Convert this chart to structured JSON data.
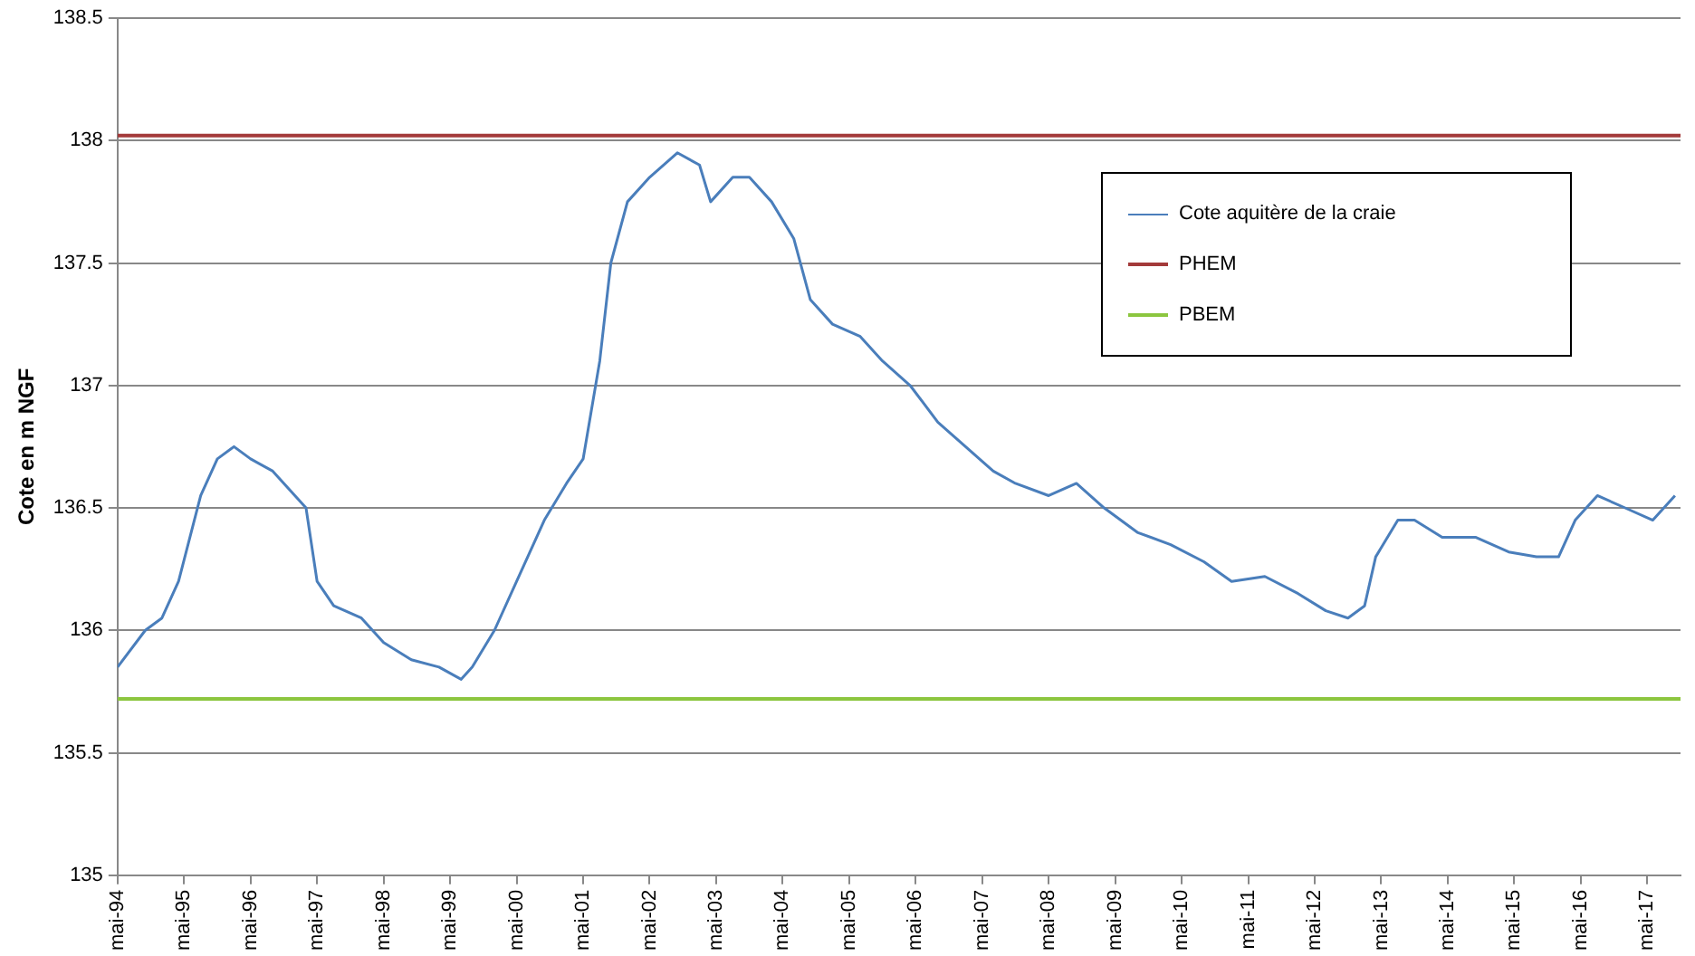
{
  "chart_data": {
    "type": "line",
    "ylabel": "Cote en m NGF",
    "x": [
      "1994-05",
      "1994-10",
      "1995-01",
      "1995-04",
      "1995-08",
      "1995-11",
      "1996-02",
      "1996-05",
      "1996-09",
      "1997-01",
      "1997-03",
      "1997-05",
      "1997-08",
      "1998-01",
      "1998-05",
      "1998-10",
      "1999-03",
      "1999-07",
      "1999-09",
      "2000-01",
      "2000-05",
      "2000-10",
      "2001-02",
      "2001-05",
      "2001-08",
      "2001-10",
      "2002-01",
      "2002-05",
      "2002-10",
      "2003-02",
      "2003-04",
      "2003-08",
      "2003-11",
      "2004-03",
      "2004-07",
      "2004-10",
      "2005-02",
      "2005-07",
      "2005-11",
      "2006-04",
      "2006-09",
      "2007-02",
      "2007-07",
      "2007-11",
      "2008-05",
      "2008-10",
      "2009-03",
      "2009-09",
      "2010-03",
      "2010-09",
      "2011-02",
      "2011-08",
      "2012-02",
      "2012-07",
      "2012-11",
      "2013-02",
      "2013-04",
      "2013-08",
      "2013-11",
      "2014-04",
      "2014-10",
      "2015-04",
      "2015-09",
      "2016-01",
      "2016-04",
      "2016-08",
      "2017-01",
      "2017-06",
      "2017-10"
    ],
    "series": [
      {
        "name": "Cote aquitère de la craie",
        "color": "#4a7ebb",
        "values": [
          135.85,
          136.0,
          136.05,
          136.2,
          136.55,
          136.7,
          136.75,
          136.7,
          136.65,
          136.55,
          136.5,
          136.2,
          136.1,
          136.05,
          135.95,
          135.88,
          135.85,
          135.8,
          135.85,
          136.0,
          136.2,
          136.45,
          136.6,
          136.7,
          137.1,
          137.5,
          137.75,
          137.85,
          137.95,
          137.9,
          137.75,
          137.85,
          137.85,
          137.75,
          137.6,
          137.35,
          137.25,
          137.2,
          137.1,
          137.0,
          136.85,
          136.75,
          136.65,
          136.6,
          136.55,
          136.6,
          136.5,
          136.4,
          136.35,
          136.28,
          136.2,
          136.22,
          136.15,
          136.08,
          136.05,
          136.1,
          136.3,
          136.45,
          136.45,
          136.38,
          136.38,
          136.32,
          136.3,
          136.3,
          136.45,
          136.55,
          136.5,
          136.45,
          136.55
        ]
      }
    ],
    "ref_lines": [
      {
        "axis": "y",
        "value": 138.02,
        "label": "PHEM",
        "color": "#a33a3a"
      },
      {
        "axis": "y",
        "value": 135.72,
        "label": "PBEM",
        "color": "#8cc63f"
      }
    ],
    "xlim": [
      "1994-05",
      "2017-11"
    ],
    "xticks": [
      {
        "value": "1994-05",
        "label": "mai-94"
      },
      {
        "value": "1995-05",
        "label": "mai-95"
      },
      {
        "value": "1996-05",
        "label": "mai-96"
      },
      {
        "value": "1997-05",
        "label": "mai-97"
      },
      {
        "value": "1998-05",
        "label": "mai-98"
      },
      {
        "value": "1999-05",
        "label": "mai-99"
      },
      {
        "value": "2000-05",
        "label": "mai-00"
      },
      {
        "value": "2001-05",
        "label": "mai-01"
      },
      {
        "value": "2002-05",
        "label": "mai-02"
      },
      {
        "value": "2003-05",
        "label": "mai-03"
      },
      {
        "value": "2004-05",
        "label": "mai-04"
      },
      {
        "value": "2005-05",
        "label": "mai-05"
      },
      {
        "value": "2006-05",
        "label": "mai-06"
      },
      {
        "value": "2007-05",
        "label": "mai-07"
      },
      {
        "value": "2008-05",
        "label": "mai-08"
      },
      {
        "value": "2009-05",
        "label": "mai-09"
      },
      {
        "value": "2010-05",
        "label": "mai-10"
      },
      {
        "value": "2011-05",
        "label": "mai-11"
      },
      {
        "value": "2012-05",
        "label": "mai-12"
      },
      {
        "value": "2013-05",
        "label": "mai-13"
      },
      {
        "value": "2014-05",
        "label": "mai-14"
      },
      {
        "value": "2015-05",
        "label": "mai-15"
      },
      {
        "value": "2016-05",
        "label": "mai-16"
      },
      {
        "value": "2017-05",
        "label": "mai-17"
      }
    ],
    "ylim": [
      135,
      138.5
    ],
    "yticks": [
      135,
      135.5,
      136,
      136.5,
      137,
      137.5,
      138,
      138.5
    ],
    "grid": "y",
    "legend": "top right"
  }
}
